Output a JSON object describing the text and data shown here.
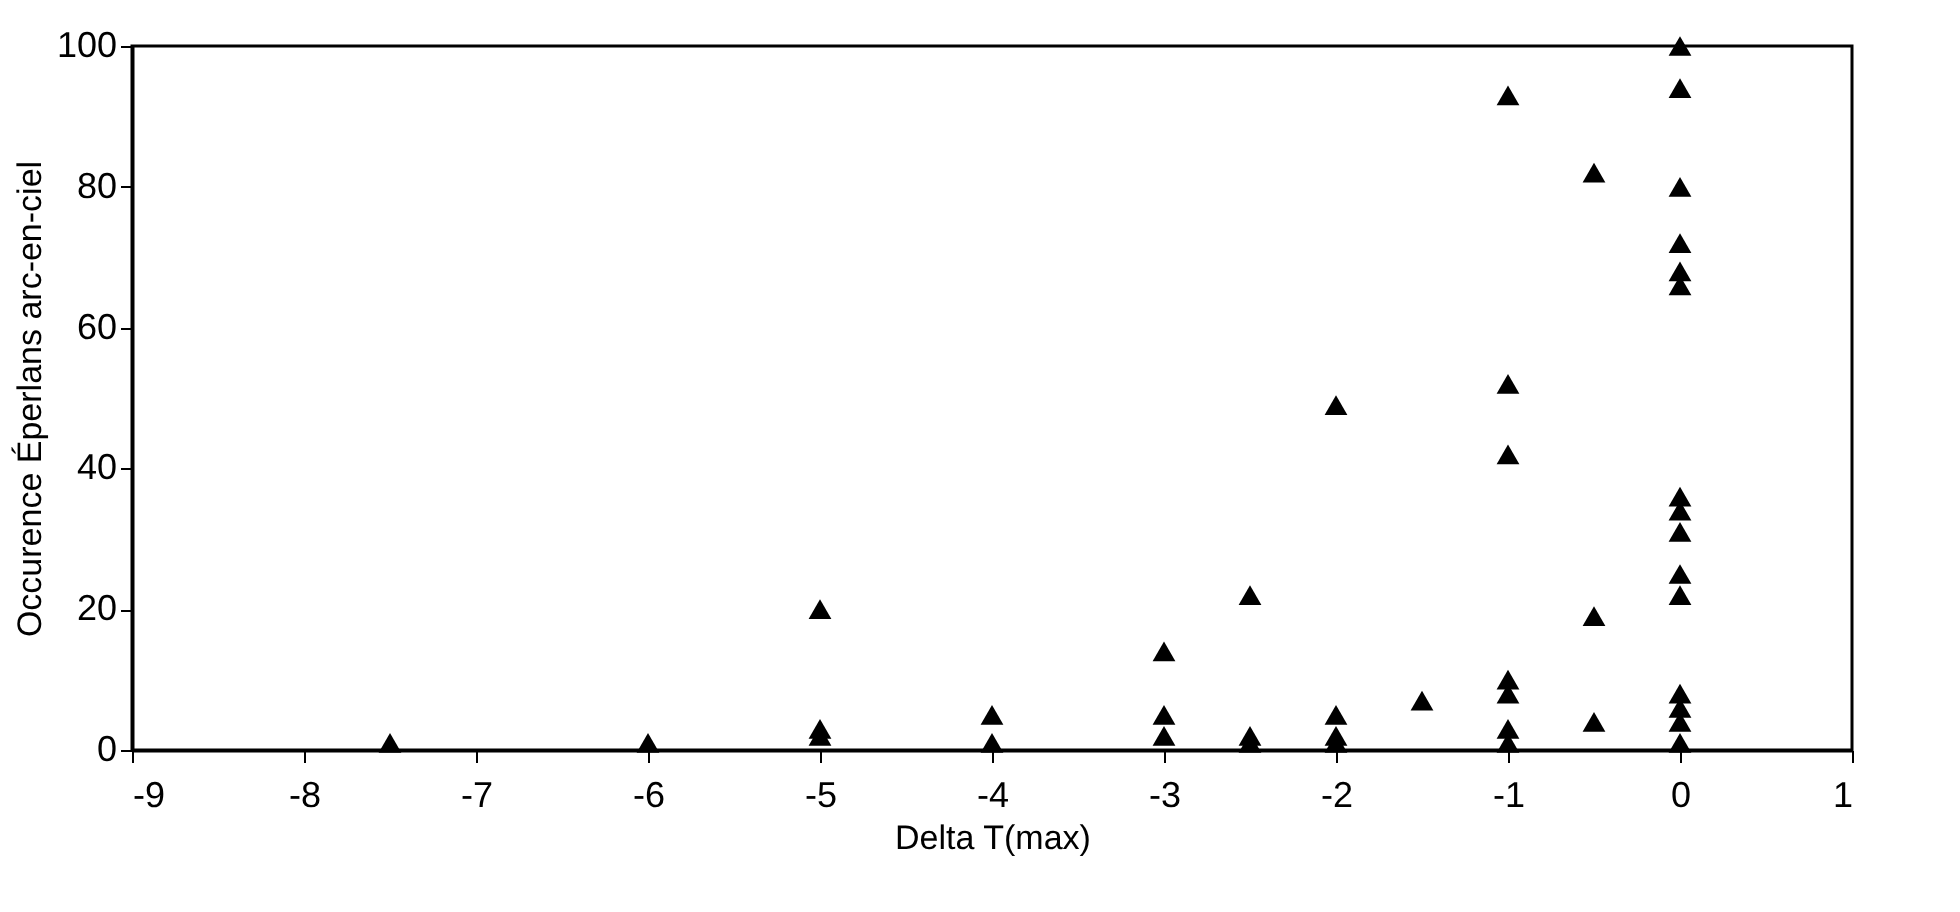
{
  "chart_data": {
    "type": "scatter",
    "xlabel": "Delta T(max)",
    "ylabel": "Occurence Éperlans arc-en-ciel",
    "x": [
      -7.5,
      -6,
      -5,
      -5,
      -5,
      -4,
      -4,
      -3,
      -3,
      -3,
      -2.5,
      -2.5,
      -2.5,
      -2,
      -2,
      -2,
      -2,
      -1.5,
      -1,
      -1,
      -1,
      -1,
      -1,
      -1,
      -1,
      -0.5,
      -0.5,
      -0.5,
      0,
      0,
      0,
      0,
      0,
      0,
      0,
      0,
      0,
      0,
      0,
      0,
      0,
      0,
      0
    ],
    "series": [
      {
        "color": "#000000",
        "values": [
          1,
          1,
          20,
          3,
          2,
          5,
          1,
          14,
          5,
          2,
          22,
          2,
          1,
          49,
          5,
          2,
          1,
          7,
          93,
          52,
          42,
          10,
          8,
          3,
          1,
          82,
          19,
          4,
          100,
          94,
          80,
          72,
          68,
          66,
          36,
          34,
          31,
          25,
          22,
          8,
          6,
          4,
          1
        ]
      }
    ],
    "marker": "triangle",
    "xlim": [
      -9,
      1
    ],
    "xticks": [
      -9,
      -8,
      -7,
      -6,
      -5,
      -4,
      -3,
      -2,
      -1,
      0,
      1
    ],
    "ylim": [
      0,
      100
    ],
    "yticks": [
      0,
      20,
      40,
      60,
      80,
      100
    ],
    "grid": false
  }
}
